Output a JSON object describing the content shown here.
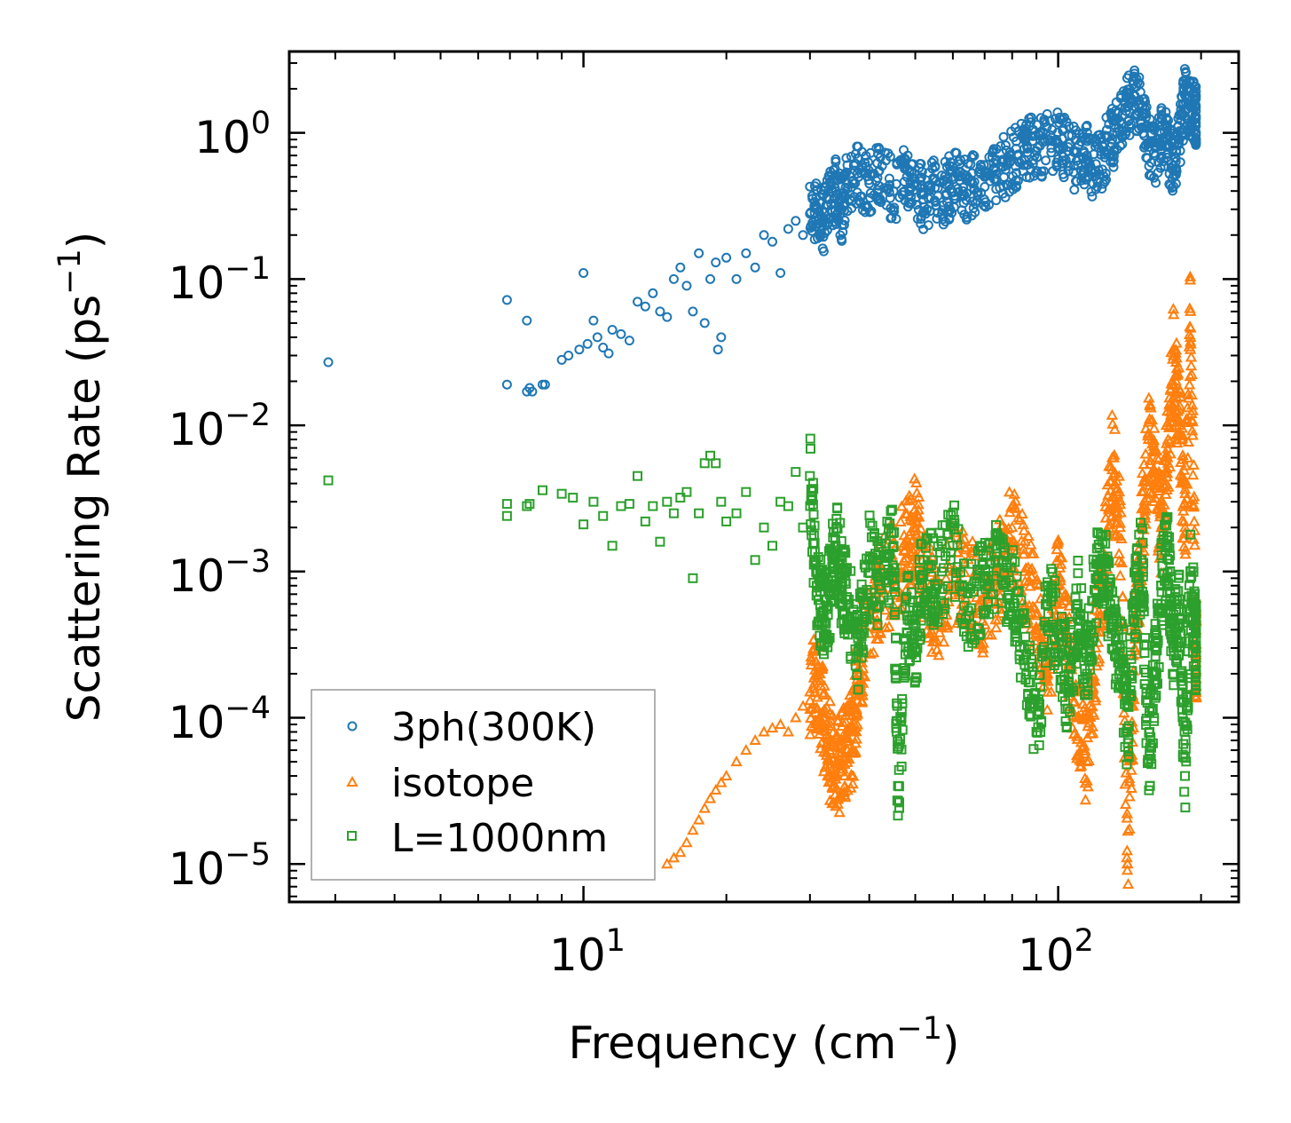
{
  "chart_data": {
    "type": "scatter",
    "title": "",
    "xlabel": "Frequency (cm",
    "xlabel_sup": "−1",
    "xlabel_end": ")",
    "ylabel": "Scattering Rate (ps",
    "ylabel_sup": "−1",
    "ylabel_end": ")",
    "xscale": "log",
    "yscale": "log",
    "xlim": [
      2.4,
      240
    ],
    "ylim": [
      5.5e-06,
      3.6
    ],
    "x_ticks": [
      {
        "value": 10,
        "base": "10",
        "exp": "1"
      },
      {
        "value": 100,
        "base": "10",
        "exp": "2"
      }
    ],
    "y_ticks": [
      {
        "value": 1,
        "base": "10",
        "exp": "0"
      },
      {
        "value": 0.1,
        "base": "10",
        "exp": "−1"
      },
      {
        "value": 0.01,
        "base": "10",
        "exp": "−2"
      },
      {
        "value": 0.001,
        "base": "10",
        "exp": "−3"
      },
      {
        "value": 0.0001,
        "base": "10",
        "exp": "−4"
      },
      {
        "value": 1e-05,
        "base": "10",
        "exp": "−5"
      }
    ],
    "legend_position": "lower-left",
    "series": [
      {
        "name": "3ph(300K)",
        "marker": "circle",
        "color": "#1f77b4",
        "x": [
          2.9,
          6.9,
          6.9,
          7.6,
          7.6,
          7.7,
          7.8,
          8.2,
          8.3,
          9.0,
          9.3,
          9.8,
          10.0,
          10.2,
          10.5,
          10.7,
          11.0,
          11.3,
          11.5,
          12.0,
          12.5,
          13.0,
          13.5,
          14.0,
          14.5,
          15.0,
          15.5,
          16.0,
          16.5,
          17.0,
          17.5,
          18.0,
          18.5,
          19.0,
          19.2,
          19.5,
          20.0,
          21.0,
          22.0,
          23.0,
          24.0,
          25.0,
          26.0,
          27.0,
          28.0,
          29.0,
          30.0,
          31.0,
          32.0,
          33.0,
          34.0,
          35.0,
          36.0,
          38.0,
          40.0,
          42.0,
          45.0,
          48.0,
          50.0,
          52.0,
          55.0,
          58.0,
          60.0,
          63.0,
          66.0,
          70.0,
          74.0,
          78.0,
          82.0,
          86.0,
          90.0,
          95.0,
          100.0,
          105.0,
          110.0,
          115.0,
          120.0,
          125.0,
          130.0,
          135.0,
          140.0,
          145.0,
          150.0,
          155.0,
          160.0,
          165.0,
          170.0,
          175.0,
          180.0,
          185.0,
          190.0,
          195.0
        ],
        "y": [
          0.027,
          0.072,
          0.019,
          0.052,
          0.017,
          0.018,
          0.017,
          0.019,
          0.019,
          0.028,
          0.03,
          0.033,
          0.11,
          0.036,
          0.052,
          0.04,
          0.034,
          0.031,
          0.045,
          0.042,
          0.038,
          0.07,
          0.065,
          0.08,
          0.06,
          0.055,
          0.1,
          0.12,
          0.09,
          0.06,
          0.15,
          0.05,
          0.1,
          0.13,
          0.033,
          0.04,
          0.14,
          0.1,
          0.15,
          0.12,
          0.2,
          0.18,
          0.11,
          0.22,
          0.25,
          0.2,
          0.28,
          0.3,
          0.25,
          0.35,
          0.4,
          0.3,
          0.45,
          0.5,
          0.45,
          0.55,
          0.4,
          0.5,
          0.45,
          0.35,
          0.42,
          0.38,
          0.48,
          0.4,
          0.45,
          0.5,
          0.55,
          0.6,
          0.7,
          0.8,
          0.75,
          0.9,
          0.85,
          0.8,
          0.6,
          0.7,
          0.55,
          0.75,
          0.9,
          1.2,
          1.5,
          1.8,
          1.3,
          0.8,
          0.7,
          1.0,
          0.8,
          0.6,
          0.9,
          1.8,
          1.5,
          1.3
        ]
      },
      {
        "name": "isotope",
        "marker": "triangle",
        "color": "#ff7f0e",
        "x": [
          15.0,
          15.5,
          16.0,
          16.5,
          17.0,
          17.5,
          18.0,
          18.5,
          19.0,
          19.5,
          20.0,
          21.0,
          22.0,
          23.0,
          24.0,
          25.0,
          26.0,
          27.0,
          28.0,
          29.0,
          30.0,
          31.0,
          32.0,
          33.0,
          34.0,
          35.0,
          36.0,
          37.0,
          38.0,
          40.0,
          42.0,
          45.0,
          48.0,
          50.0,
          52.0,
          55.0,
          60.0,
          65.0,
          70.0,
          75.0,
          80.0,
          85.0,
          90.0,
          95.0,
          100.0,
          105.0,
          110.0,
          115.0,
          120.0,
          125.0,
          130.0,
          135.0,
          140.0,
          145.0,
          150.0,
          155.0,
          160.0,
          165.0,
          170.0,
          175.0,
          180.0,
          185.0,
          190.0,
          195.0
        ],
        "y": [
          1e-05,
          1.1e-05,
          1.2e-05,
          1.4e-05,
          1.7e-05,
          2e-05,
          2.4e-05,
          2.8e-05,
          3.2e-05,
          3.6e-05,
          4e-05,
          5e-05,
          6e-05,
          7e-05,
          8e-05,
          8.5e-05,
          9e-05,
          8e-05,
          0.0001,
          0.00012,
          0.00015,
          0.00018,
          0.0001,
          6e-05,
          4e-05,
          5e-05,
          6e-05,
          8e-05,
          0.0002,
          0.0005,
          0.0008,
          0.001,
          0.0015,
          0.002,
          0.001,
          0.0005,
          0.001,
          0.0008,
          0.0006,
          0.001,
          0.002,
          0.001,
          0.0005,
          0.0002,
          0.0008,
          0.0003,
          0.0001,
          5e-05,
          0.0003,
          0.001,
          0.006,
          0.002,
          1e-05,
          0.0003,
          0.002,
          0.008,
          0.004,
          0.002,
          0.006,
          0.03,
          0.01,
          0.002,
          0.06,
          0.0003
        ]
      },
      {
        "name": "L=1000nm",
        "marker": "square",
        "color": "#2ca02c",
        "x": [
          2.9,
          6.9,
          6.9,
          7.6,
          7.7,
          8.2,
          9.0,
          9.5,
          10.0,
          10.5,
          11.0,
          11.5,
          12.0,
          12.5,
          13.0,
          13.5,
          14.0,
          14.5,
          15.0,
          15.5,
          16.0,
          16.5,
          17.0,
          17.5,
          18.0,
          18.5,
          19.0,
          19.5,
          20.0,
          21.0,
          22.0,
          23.0,
          24.0,
          25.0,
          26.0,
          27.0,
          28.0,
          29.0,
          30.0,
          31.0,
          32.0,
          33.0,
          34.0,
          35.0,
          36.0,
          38.0,
          40.0,
          42.0,
          45.0,
          46.0,
          48.0,
          50.0,
          52.0,
          55.0,
          60.0,
          65.0,
          70.0,
          75.0,
          80.0,
          85.0,
          90.0,
          95.0,
          100.0,
          105.0,
          110.0,
          115.0,
          120.0,
          125.0,
          130.0,
          135.0,
          140.0,
          145.0,
          150.0,
          155.0,
          160.0,
          165.0,
          170.0,
          175.0,
          180.0,
          185.0,
          190.0,
          195.0
        ],
        "y": [
          0.0042,
          0.0029,
          0.0024,
          0.0028,
          0.0029,
          0.0036,
          0.0034,
          0.0032,
          0.0021,
          0.003,
          0.0024,
          0.0015,
          0.0028,
          0.0029,
          0.0045,
          0.0022,
          0.0028,
          0.0016,
          0.003,
          0.0025,
          0.0032,
          0.0035,
          0.0009,
          0.0025,
          0.0055,
          0.0062,
          0.0055,
          0.003,
          0.0022,
          0.0025,
          0.0035,
          0.0012,
          0.002,
          0.0015,
          0.003,
          0.0028,
          0.0048,
          0.002,
          0.0045,
          0.0008,
          0.0005,
          0.0007,
          0.0015,
          0.0009,
          0.0006,
          0.0003,
          0.0012,
          0.0008,
          0.0015,
          2.7e-05,
          0.0005,
          0.0003,
          0.0012,
          0.0008,
          0.0015,
          0.0005,
          0.0009,
          0.0012,
          0.0008,
          0.00025,
          8e-05,
          0.0006,
          0.0004,
          0.00015,
          0.0006,
          0.0002,
          0.0009,
          0.0012,
          0.0004,
          0.0003,
          8e-05,
          0.0006,
          0.0012,
          5e-05,
          0.0002,
          0.0008,
          0.0015,
          0.0003,
          0.0006,
          4e-05,
          0.0009,
          0.0003
        ]
      }
    ]
  }
}
